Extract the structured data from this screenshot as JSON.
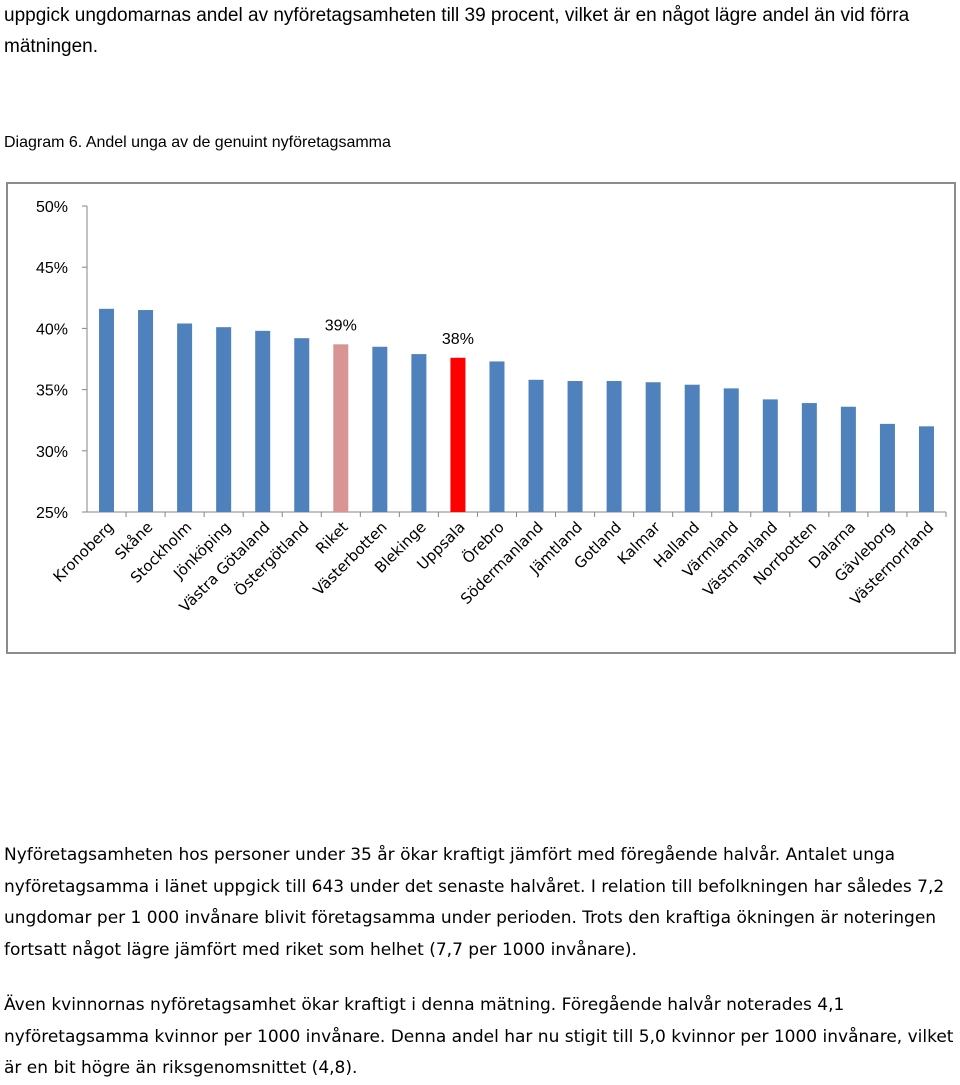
{
  "intro_text": "uppgick ungdomarnas andel av nyföretagsamheten till 39 procent, vilket är en något lägre andel än vid förra mätningen.",
  "diagram_caption": "Diagram 6. Andel unga av de genuint nyföretagsamma",
  "chart_data": {
    "type": "bar",
    "title": "",
    "xlabel": "",
    "ylabel": "",
    "ylim": [
      25,
      50
    ],
    "yticks": [
      "50%",
      "45%",
      "40%",
      "35%",
      "30%",
      "25%"
    ],
    "ytick_values": [
      50,
      45,
      40,
      35,
      30,
      25
    ],
    "grid": false,
    "categories": [
      "Kronoberg",
      "Skåne",
      "Stockholm",
      "Jönköping",
      "Västra Götaland",
      "Östergötland",
      "Riket",
      "Västerbotten",
      "Blekinge",
      "Uppsala",
      "Örebro",
      "Södermanland",
      "Jämtland",
      "Gotland",
      "Kalmar",
      "Halland",
      "Värmland",
      "Västmanland",
      "Norrbotten",
      "Dalarna",
      "Gävleborg",
      "Västernorrland"
    ],
    "values": [
      41.6,
      41.5,
      40.4,
      40.1,
      39.8,
      39.2,
      38.7,
      38.5,
      37.9,
      37.6,
      37.3,
      35.8,
      35.7,
      35.7,
      35.6,
      35.4,
      35.1,
      34.2,
      33.9,
      33.6,
      32.2,
      32.0
    ],
    "colors": {
      "default": "#4f81bd",
      "Riket": "#d99594",
      "Uppsala": "#ff0000"
    },
    "data_labels": [
      {
        "category": "Riket",
        "text": "39%"
      },
      {
        "category": "Uppsala",
        "text": "38%"
      }
    ]
  },
  "paragraph_1": "Nyföretagsamheten hos personer under 35 år ökar kraftigt jämfört med föregående halvår. Antalet unga nyföretagsamma i länet uppgick till 643 under det senaste halvåret. I relation till befolkningen har således 7,2 ungdomar per 1 000 invånare blivit företagsamma under perioden. Trots den kraftiga ökningen är noteringen fortsatt något lägre jämfört med riket som helhet (7,7 per 1000 invånare).",
  "paragraph_2": "Även kvinnornas nyföretagsamhet ökar kraftigt i denna mätning. Föregående halvår noterades 4,1 nyföretagsamma kvinnor per 1000 invånare. Denna andel har nu stigit till 5,0 kvinnor per 1000 invånare, vilket är en bit högre än riksgenomsnittet (4,8)."
}
